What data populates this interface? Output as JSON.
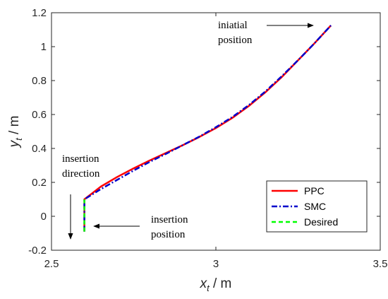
{
  "chart_data": {
    "type": "line",
    "xlabel": {
      "var": "x",
      "sub": "t",
      "unit": " / m"
    },
    "ylabel": {
      "var": "y",
      "sub": "t",
      "unit": " / m"
    },
    "xlim": [
      2.5,
      3.5
    ],
    "ylim": [
      -0.2,
      1.2
    ],
    "xticks": [
      "2.5",
      "3",
      "3.5"
    ],
    "yticks": [
      "-0.2",
      "0",
      "0.2",
      "0.4",
      "0.6",
      "0.8",
      "1",
      "1.2"
    ],
    "grid": false,
    "legend_position": "lower-right",
    "series": [
      {
        "name": "PPC",
        "color": "#ff0000",
        "style": "solid",
        "x": [
          2.6,
          2.6,
          2.65,
          2.7,
          2.75,
          2.8,
          2.85,
          2.9,
          2.95,
          3.0,
          3.05,
          3.1,
          3.15,
          3.2,
          3.25,
          3.3,
          3.35
        ],
        "y": [
          -0.09,
          0.1,
          0.175,
          0.232,
          0.283,
          0.33,
          0.375,
          0.42,
          0.468,
          0.52,
          0.58,
          0.65,
          0.73,
          0.82,
          0.92,
          1.02,
          1.125
        ]
      },
      {
        "name": "SMC",
        "color": "#0000cc",
        "style": "dashdot",
        "x": [
          2.6,
          2.6,
          2.65,
          2.7,
          2.75,
          2.8,
          2.85,
          2.9,
          2.95,
          3.0,
          3.05,
          3.1,
          3.15,
          3.2,
          3.25,
          3.3,
          3.35
        ],
        "y": [
          -0.09,
          0.1,
          0.16,
          0.215,
          0.27,
          0.322,
          0.37,
          0.42,
          0.47,
          0.525,
          0.585,
          0.655,
          0.735,
          0.825,
          0.92,
          1.02,
          1.125
        ]
      },
      {
        "name": "Desired",
        "color": "#00ff00",
        "style": "dashed",
        "x": [
          2.6,
          2.6
        ],
        "y": [
          -0.09,
          0.1
        ]
      }
    ],
    "annotations": [
      {
        "lines": [
          "iniatial",
          "position"
        ],
        "x": 3.0,
        "y": 1.15
      },
      {
        "lines": [
          "insertion",
          "direction"
        ],
        "x": 2.55,
        "y": 0.3
      },
      {
        "lines": [
          "insertion",
          "position"
        ],
        "x": 2.75,
        "y": 0.0
      }
    ]
  }
}
